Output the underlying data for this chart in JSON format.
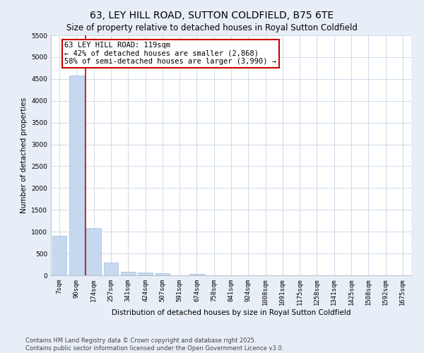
{
  "title": "63, LEY HILL ROAD, SUTTON COLDFIELD, B75 6TE",
  "subtitle": "Size of property relative to detached houses in Royal Sutton Coldfield",
  "xlabel": "Distribution of detached houses by size in Royal Sutton Coldfield",
  "ylabel": "Number of detached properties",
  "categories": [
    "7sqm",
    "90sqm",
    "174sqm",
    "257sqm",
    "341sqm",
    "424sqm",
    "507sqm",
    "591sqm",
    "674sqm",
    "758sqm",
    "841sqm",
    "924sqm",
    "1008sqm",
    "1091sqm",
    "1175sqm",
    "1258sqm",
    "1341sqm",
    "1425sqm",
    "1508sqm",
    "1592sqm",
    "1675sqm"
  ],
  "values": [
    900,
    4580,
    1090,
    295,
    75,
    60,
    50,
    0,
    40,
    0,
    0,
    0,
    0,
    0,
    0,
    0,
    0,
    0,
    0,
    0,
    0
  ],
  "bar_color": "#c5d8f0",
  "bar_edge_color": "#9fbfe0",
  "property_line_x": 1.5,
  "annotation_text": "63 LEY HILL ROAD: 119sqm\n← 42% of detached houses are smaller (2,868)\n58% of semi-detached houses are larger (3,990) →",
  "annotation_box_color": "#ffffff",
  "annotation_border_color": "#cc0000",
  "vline_color": "#cc0000",
  "ylim": [
    0,
    5500
  ],
  "yticks": [
    0,
    500,
    1000,
    1500,
    2000,
    2500,
    3000,
    3500,
    4000,
    4500,
    5000,
    5500
  ],
  "plot_bg_color": "#ffffff",
  "fig_bg_color": "#e8eef7",
  "footer_text": "Contains HM Land Registry data © Crown copyright and database right 2025.\nContains public sector information licensed under the Open Government Licence v3.0.",
  "title_fontsize": 10,
  "subtitle_fontsize": 8.5,
  "xlabel_fontsize": 7.5,
  "ylabel_fontsize": 7.5,
  "tick_fontsize": 6.5,
  "annotation_fontsize": 7.5,
  "footer_fontsize": 6
}
